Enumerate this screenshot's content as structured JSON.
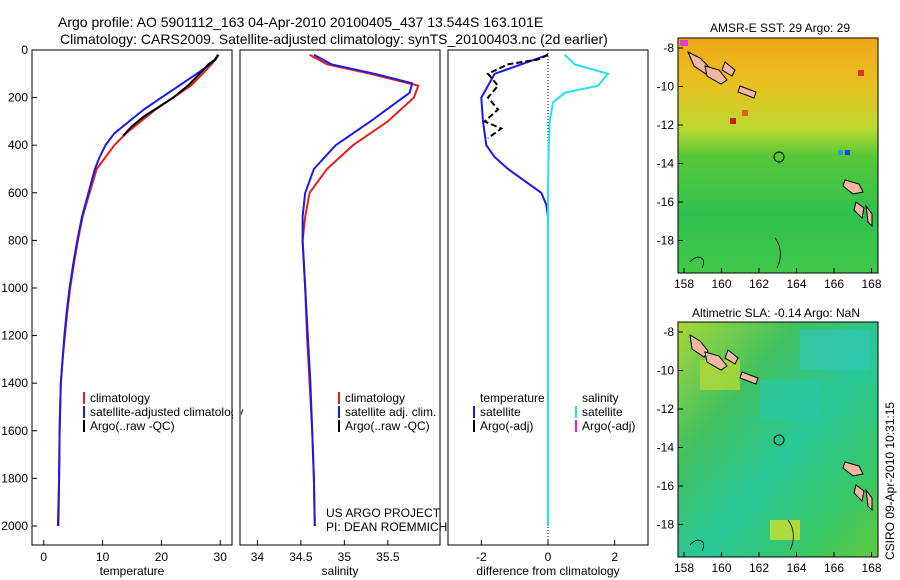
{
  "header": {
    "line1": "Argo profile: AO 5901112_163 04-Apr-2010 20100405_437 13.544S 163.101E",
    "line2": "Climatology: CARS2009. Satellite-adjusted climatology: synTS_20100403.nc (2d earlier)"
  },
  "footer": {
    "project": "US ARGO PROJECT",
    "pi": "PI: DEAN ROEMMICH",
    "credit": "CSIRO 09-Apr-2010 10:31:15"
  },
  "colors": {
    "clim": "#e8201c",
    "sat": "#1a1ae6",
    "argo": "#000000",
    "sat_sal": "#22e0f0",
    "argo_sal": "#e020e0"
  },
  "chart_data": [
    {
      "id": "temperature",
      "type": "line",
      "xlabel": "temperature",
      "ylabel": "",
      "xlim": [
        -2,
        32
      ],
      "ylim": [
        2080,
        0
      ],
      "xticks": [
        0,
        10,
        20,
        30
      ],
      "yticks": [
        0,
        200,
        400,
        600,
        800,
        1000,
        1200,
        1400,
        1600,
        1800,
        2000
      ],
      "legend": [
        "climatology",
        "satellite-adjusted climatology",
        "Argo(..raw -QC)"
      ],
      "series": [
        {
          "name": "climatology",
          "color": "#e8201c",
          "x": [
            29.5,
            29.2,
            28.5,
            27,
            25,
            22,
            19,
            16.5,
            14,
            12,
            10.5,
            9,
            7.8,
            6.6,
            5.8,
            5.1,
            4.5,
            4.0,
            3.6,
            3.2,
            2.9,
            2.7,
            2.6,
            2.5
          ],
          "depth": [
            20,
            40,
            60,
            100,
            150,
            200,
            250,
            300,
            350,
            400,
            450,
            500,
            600,
            700,
            800,
            900,
            1000,
            1100,
            1200,
            1300,
            1400,
            1600,
            1800,
            2000
          ]
        },
        {
          "name": "satellite",
          "color": "#1a1ae6",
          "x": [
            29.6,
            29.1,
            28.3,
            26,
            23,
            20,
            17,
            14.5,
            12,
            10.5,
            9.5,
            8.7,
            7.6,
            6.5,
            5.7,
            5.0,
            4.4,
            3.9,
            3.5,
            3.2,
            2.9,
            2.7,
            2.6,
            2.4
          ],
          "depth": [
            20,
            40,
            60,
            100,
            150,
            200,
            250,
            300,
            350,
            400,
            450,
            500,
            600,
            700,
            800,
            900,
            1000,
            1100,
            1200,
            1300,
            1400,
            1600,
            1800,
            2000
          ]
        },
        {
          "name": "Argo",
          "color": "#000000",
          "x": [
            29.7,
            29.2,
            28.0,
            26.5,
            24.5,
            22,
            19.5,
            17,
            15,
            13.5
          ],
          "depth": [
            20,
            40,
            60,
            100,
            150,
            200,
            240,
            280,
            320,
            360
          ]
        }
      ]
    },
    {
      "id": "salinity",
      "type": "line",
      "xlabel": "salinity",
      "ylabel": "",
      "xlim": [
        33.8,
        36.1
      ],
      "ylim": [
        2080,
        0
      ],
      "xticks": [
        34,
        34.5,
        35,
        35.5
      ],
      "legend": [
        "climatology",
        "satellite adj. clim.",
        "Argo(..raw -QC)"
      ],
      "series": [
        {
          "name": "climatology",
          "color": "#e8201c",
          "x": [
            34.6,
            34.8,
            35.3,
            35.85,
            35.8,
            35.5,
            35.1,
            34.8,
            34.6,
            34.55,
            34.52,
            34.55,
            34.57,
            34.6,
            34.63,
            34.65,
            34.66
          ],
          "depth": [
            20,
            60,
            100,
            150,
            200,
            300,
            400,
            500,
            600,
            700,
            800,
            1000,
            1200,
            1400,
            1600,
            1800,
            2000
          ]
        },
        {
          "name": "satellite",
          "color": "#1a1ae6",
          "x": [
            34.65,
            34.85,
            35.35,
            35.78,
            35.75,
            35.3,
            34.9,
            34.65,
            34.55,
            34.52,
            34.52,
            34.55,
            34.58,
            34.61,
            34.63,
            34.65,
            34.66
          ],
          "depth": [
            20,
            60,
            100,
            140,
            180,
            300,
            400,
            500,
            600,
            700,
            800,
            1000,
            1200,
            1400,
            1600,
            1800,
            2000
          ]
        }
      ]
    },
    {
      "id": "difference",
      "type": "line",
      "xlabel": "difference from climatology",
      "ylabel": "",
      "xlim": [
        -3,
        3
      ],
      "ylim": [
        2080,
        0
      ],
      "xticks": [
        -2,
        0,
        2
      ],
      "legend_groups": [
        {
          "title": "temperature",
          "items": [
            "satellite",
            "Argo(-adj)"
          ]
        },
        {
          "title": "salinity",
          "items": [
            "satellite",
            "Argo(-adj)"
          ]
        }
      ],
      "series": [
        {
          "name": "temperature satellite",
          "color": "#1a1ae6",
          "x": [
            0,
            -0.6,
            -1.6,
            -2.0,
            -1.95,
            -1.85,
            -1.6,
            -1.2,
            -0.7,
            -0.2,
            -0.05,
            0,
            0,
            0,
            0
          ],
          "depth": [
            20,
            50,
            100,
            200,
            300,
            400,
            450,
            500,
            550,
            600,
            650,
            700,
            1000,
            1500,
            2000
          ]
        },
        {
          "name": "salinity satellite",
          "color": "#22e0f0",
          "x": [
            0.5,
            0.8,
            1.8,
            1.5,
            0.5,
            0.15,
            0.05,
            0.02,
            0,
            0,
            0,
            0,
            0
          ],
          "depth": [
            20,
            60,
            100,
            150,
            180,
            220,
            300,
            400,
            600,
            800,
            1000,
            1500,
            2000
          ]
        },
        {
          "name": "temperature Argo",
          "color": "#000000",
          "dashed": true,
          "x": [
            0,
            -0.3,
            -1.2,
            -1.8,
            -1.5,
            -1.8,
            -1.5,
            -1.9,
            -1.4,
            -1.8
          ],
          "depth": [
            20,
            40,
            60,
            100,
            150,
            200,
            250,
            300,
            330,
            370
          ]
        }
      ]
    }
  ],
  "maps": [
    {
      "title": "AMSR-E SST: 29 Argo: 29",
      "xticks": [
        "158",
        "160",
        "162",
        "164",
        "166",
        "168"
      ],
      "yticks": [
        "-8",
        "-10",
        "-12",
        "-14",
        "-16",
        "-18"
      ]
    },
    {
      "title": "Altimetric SLA: -0.14 Argo: NaN",
      "xticks": [
        "158",
        "160",
        "162",
        "164",
        "166",
        "168"
      ],
      "yticks": [
        "-8",
        "-10",
        "-12",
        "-14",
        "-16",
        "-18"
      ]
    }
  ]
}
